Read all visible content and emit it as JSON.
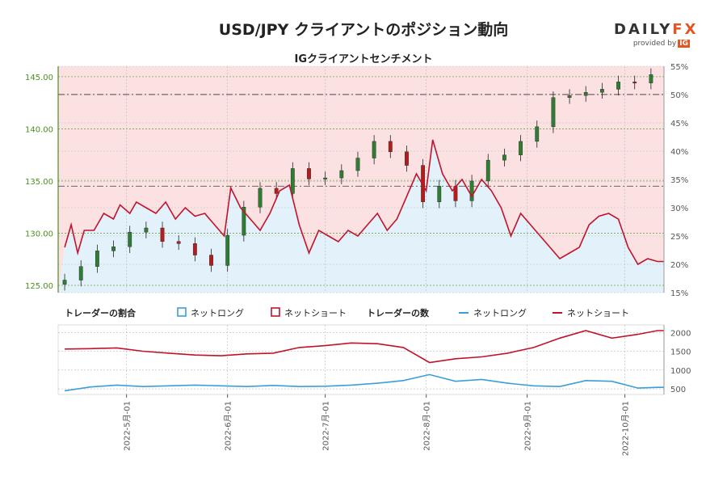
{
  "header": {
    "title": "USD/JPY クライアントのポジション動向",
    "subtitle": "IGクライアントセンチメント",
    "logo_main": "DAILY",
    "logo_fx": "FX",
    "logo_provided": "provided by",
    "logo_ig": "IG"
  },
  "legend": {
    "ratio_title": "トレーダーの割合",
    "net_long": "ネットロング",
    "net_short": "ネットショート",
    "count_title": "トレーダーの数",
    "net_long_2": "ネットロング",
    "net_short_2": "ネットショート"
  },
  "colors": {
    "long": "#3a9fd9",
    "short": "#c0142c",
    "long_fill": "#e3f1fb",
    "short_fill": "#fbe1e1",
    "price_axis": "#4a8f1e",
    "candle_up": "#2e7d32",
    "candle_down": "#b71c1c"
  },
  "chart_data": [
    {
      "type": "candlestick+area",
      "title": "IGクライアントセンチメント",
      "price_axis": {
        "ylim": [
          124.3,
          146.0
        ],
        "ticks": [
          "125.00",
          "130.00",
          "135.00",
          "140.00",
          "145.00"
        ]
      },
      "percent_axis": {
        "ylim": [
          15,
          55
        ],
        "ticks": [
          "15%",
          "20%",
          "25%",
          "30%",
          "35%",
          "40%",
          "45%",
          "50%",
          "55%"
        ]
      },
      "x_ticks": [
        "2022-5月-01",
        "2022-6月-01",
        "2022-7月-01",
        "2022-8月-01",
        "2022-9月-01",
        "2022-10月-01"
      ],
      "reference_lines": {
        "price": 143.3,
        "percent": 33.8
      },
      "series": [
        {
          "name": "ネットショート",
          "kind": "percent_short",
          "values": [
            {
              "date": "2022-04-12",
              "value": 23
            },
            {
              "date": "2022-04-14",
              "value": 27
            },
            {
              "date": "2022-04-16",
              "value": 22
            },
            {
              "date": "2022-04-18",
              "value": 26
            },
            {
              "date": "2022-04-21",
              "value": 26
            },
            {
              "date": "2022-04-24",
              "value": 29
            },
            {
              "date": "2022-04-27",
              "value": 28
            },
            {
              "date": "2022-04-29",
              "value": 30.5
            },
            {
              "date": "2022-05-02",
              "value": 29
            },
            {
              "date": "2022-05-04",
              "value": 31
            },
            {
              "date": "2022-05-07",
              "value": 30
            },
            {
              "date": "2022-05-10",
              "value": 29
            },
            {
              "date": "2022-05-13",
              "value": 31
            },
            {
              "date": "2022-05-16",
              "value": 28
            },
            {
              "date": "2022-05-19",
              "value": 30
            },
            {
              "date": "2022-05-22",
              "value": 28.5
            },
            {
              "date": "2022-05-25",
              "value": 29
            },
            {
              "date": "2022-05-28",
              "value": 27
            },
            {
              "date": "2022-05-31",
              "value": 25
            },
            {
              "date": "2022-06-02",
              "value": 33.5
            },
            {
              "date": "2022-06-05",
              "value": 30
            },
            {
              "date": "2022-06-08",
              "value": 28
            },
            {
              "date": "2022-06-11",
              "value": 26
            },
            {
              "date": "2022-06-14",
              "value": 29
            },
            {
              "date": "2022-06-17",
              "value": 33
            },
            {
              "date": "2022-06-20",
              "value": 34
            },
            {
              "date": "2022-06-23",
              "value": 27
            },
            {
              "date": "2022-06-26",
              "value": 22
            },
            {
              "date": "2022-06-29",
              "value": 26
            },
            {
              "date": "2022-07-02",
              "value": 25
            },
            {
              "date": "2022-07-05",
              "value": 24
            },
            {
              "date": "2022-07-08",
              "value": 26
            },
            {
              "date": "2022-07-11",
              "value": 25
            },
            {
              "date": "2022-07-14",
              "value": 27
            },
            {
              "date": "2022-07-17",
              "value": 29
            },
            {
              "date": "2022-07-20",
              "value": 26
            },
            {
              "date": "2022-07-23",
              "value": 28
            },
            {
              "date": "2022-07-26",
              "value": 32
            },
            {
              "date": "2022-07-29",
              "value": 36
            },
            {
              "date": "2022-08-01",
              "value": 33
            },
            {
              "date": "2022-08-03",
              "value": 42
            },
            {
              "date": "2022-08-06",
              "value": 36
            },
            {
              "date": "2022-08-09",
              "value": 33
            },
            {
              "date": "2022-08-12",
              "value": 35
            },
            {
              "date": "2022-08-15",
              "value": 32
            },
            {
              "date": "2022-08-18",
              "value": 35
            },
            {
              "date": "2022-08-21",
              "value": 33
            },
            {
              "date": "2022-08-24",
              "value": 30
            },
            {
              "date": "2022-08-27",
              "value": 25
            },
            {
              "date": "2022-08-30",
              "value": 29
            },
            {
              "date": "2022-09-02",
              "value": 27
            },
            {
              "date": "2022-09-05",
              "value": 25
            },
            {
              "date": "2022-09-08",
              "value": 23
            },
            {
              "date": "2022-09-11",
              "value": 21
            },
            {
              "date": "2022-09-14",
              "value": 22
            },
            {
              "date": "2022-09-17",
              "value": 23
            },
            {
              "date": "2022-09-20",
              "value": 27
            },
            {
              "date": "2022-09-23",
              "value": 28.5
            },
            {
              "date": "2022-09-26",
              "value": 29
            },
            {
              "date": "2022-09-29",
              "value": 28
            },
            {
              "date": "2022-10-02",
              "value": 23
            },
            {
              "date": "2022-10-05",
              "value": 20
            },
            {
              "date": "2022-10-08",
              "value": 21
            },
            {
              "date": "2022-10-11",
              "value": 20.5
            }
          ]
        },
        {
          "name": "USD/JPY",
          "kind": "candles_weekly_approx",
          "values": [
            {
              "date": "2022-04-12",
              "close": 125.5
            },
            {
              "date": "2022-04-17",
              "close": 126.8
            },
            {
              "date": "2022-04-22",
              "close": 128.3
            },
            {
              "date": "2022-04-27",
              "close": 128.7
            },
            {
              "date": "2022-05-02",
              "close": 130.1
            },
            {
              "date": "2022-05-07",
              "close": 130.5
            },
            {
              "date": "2022-05-12",
              "close": 129.2
            },
            {
              "date": "2022-05-17",
              "close": 129.0
            },
            {
              "date": "2022-05-22",
              "close": 127.9
            },
            {
              "date": "2022-05-27",
              "close": 126.9
            },
            {
              "date": "2022-06-01",
              "close": 129.8
            },
            {
              "date": "2022-06-06",
              "close": 132.5
            },
            {
              "date": "2022-06-11",
              "close": 134.3
            },
            {
              "date": "2022-06-16",
              "close": 133.8
            },
            {
              "date": "2022-06-21",
              "close": 136.2
            },
            {
              "date": "2022-06-26",
              "close": 135.2
            },
            {
              "date": "2022-07-01",
              "close": 135.3
            },
            {
              "date": "2022-07-06",
              "close": 136.0
            },
            {
              "date": "2022-07-11",
              "close": 137.2
            },
            {
              "date": "2022-07-16",
              "close": 138.8
            },
            {
              "date": "2022-07-21",
              "close": 137.8
            },
            {
              "date": "2022-07-26",
              "close": 136.5
            },
            {
              "date": "2022-07-31",
              "close": 133.0
            },
            {
              "date": "2022-08-05",
              "close": 134.5
            },
            {
              "date": "2022-08-10",
              "close": 133.1
            },
            {
              "date": "2022-08-15",
              "close": 135.0
            },
            {
              "date": "2022-08-20",
              "close": 137.0
            },
            {
              "date": "2022-08-25",
              "close": 137.5
            },
            {
              "date": "2022-08-30",
              "close": 138.8
            },
            {
              "date": "2022-09-04",
              "close": 140.2
            },
            {
              "date": "2022-09-09",
              "close": 143.0
            },
            {
              "date": "2022-09-14",
              "close": 143.2
            },
            {
              "date": "2022-09-19",
              "close": 143.5
            },
            {
              "date": "2022-09-24",
              "close": 143.8
            },
            {
              "date": "2022-09-29",
              "close": 144.5
            },
            {
              "date": "2022-10-04",
              "close": 144.4
            },
            {
              "date": "2022-10-09",
              "close": 145.2
            }
          ]
        }
      ]
    },
    {
      "type": "line",
      "x_ticks": [
        "2022-5月-01",
        "2022-6月-01",
        "2022-7月-01",
        "2022-8月-01",
        "2022-9月-01",
        "2022-10月-01"
      ],
      "y_ticks": [
        "500",
        "1000",
        "1500",
        "2000"
      ],
      "ylim": [
        350,
        2200
      ],
      "series": [
        {
          "name": "ネットショート",
          "values": [
            {
              "date": "2022-04-12",
              "value": 1560
            },
            {
              "date": "2022-04-20",
              "value": 1570
            },
            {
              "date": "2022-04-28",
              "value": 1590
            },
            {
              "date": "2022-05-06",
              "value": 1500
            },
            {
              "date": "2022-05-14",
              "value": 1450
            },
            {
              "date": "2022-05-22",
              "value": 1400
            },
            {
              "date": "2022-05-30",
              "value": 1380
            },
            {
              "date": "2022-06-07",
              "value": 1430
            },
            {
              "date": "2022-06-15",
              "value": 1450
            },
            {
              "date": "2022-06-23",
              "value": 1600
            },
            {
              "date": "2022-07-01",
              "value": 1650
            },
            {
              "date": "2022-07-09",
              "value": 1720
            },
            {
              "date": "2022-07-17",
              "value": 1700
            },
            {
              "date": "2022-07-25",
              "value": 1600
            },
            {
              "date": "2022-08-02",
              "value": 1200
            },
            {
              "date": "2022-08-10",
              "value": 1300
            },
            {
              "date": "2022-08-18",
              "value": 1350
            },
            {
              "date": "2022-08-26",
              "value": 1450
            },
            {
              "date": "2022-09-03",
              "value": 1600
            },
            {
              "date": "2022-09-11",
              "value": 1850
            },
            {
              "date": "2022-09-19",
              "value": 2050
            },
            {
              "date": "2022-09-27",
              "value": 1850
            },
            {
              "date": "2022-10-05",
              "value": 1950
            },
            {
              "date": "2022-10-11",
              "value": 2050
            }
          ]
        },
        {
          "name": "ネットロング",
          "values": [
            {
              "date": "2022-04-12",
              "value": 450
            },
            {
              "date": "2022-04-20",
              "value": 550
            },
            {
              "date": "2022-04-28",
              "value": 600
            },
            {
              "date": "2022-05-06",
              "value": 560
            },
            {
              "date": "2022-05-14",
              "value": 580
            },
            {
              "date": "2022-05-22",
              "value": 600
            },
            {
              "date": "2022-05-30",
              "value": 580
            },
            {
              "date": "2022-06-07",
              "value": 560
            },
            {
              "date": "2022-06-15",
              "value": 590
            },
            {
              "date": "2022-06-23",
              "value": 560
            },
            {
              "date": "2022-07-01",
              "value": 570
            },
            {
              "date": "2022-07-09",
              "value": 600
            },
            {
              "date": "2022-07-17",
              "value": 650
            },
            {
              "date": "2022-07-25",
              "value": 720
            },
            {
              "date": "2022-08-02",
              "value": 880
            },
            {
              "date": "2022-08-10",
              "value": 700
            },
            {
              "date": "2022-08-18",
              "value": 750
            },
            {
              "date": "2022-08-26",
              "value": 650
            },
            {
              "date": "2022-09-03",
              "value": 580
            },
            {
              "date": "2022-09-11",
              "value": 560
            },
            {
              "date": "2022-09-19",
              "value": 720
            },
            {
              "date": "2022-09-27",
              "value": 700
            },
            {
              "date": "2022-10-05",
              "value": 520
            },
            {
              "date": "2022-10-11",
              "value": 540
            }
          ]
        }
      ]
    }
  ]
}
